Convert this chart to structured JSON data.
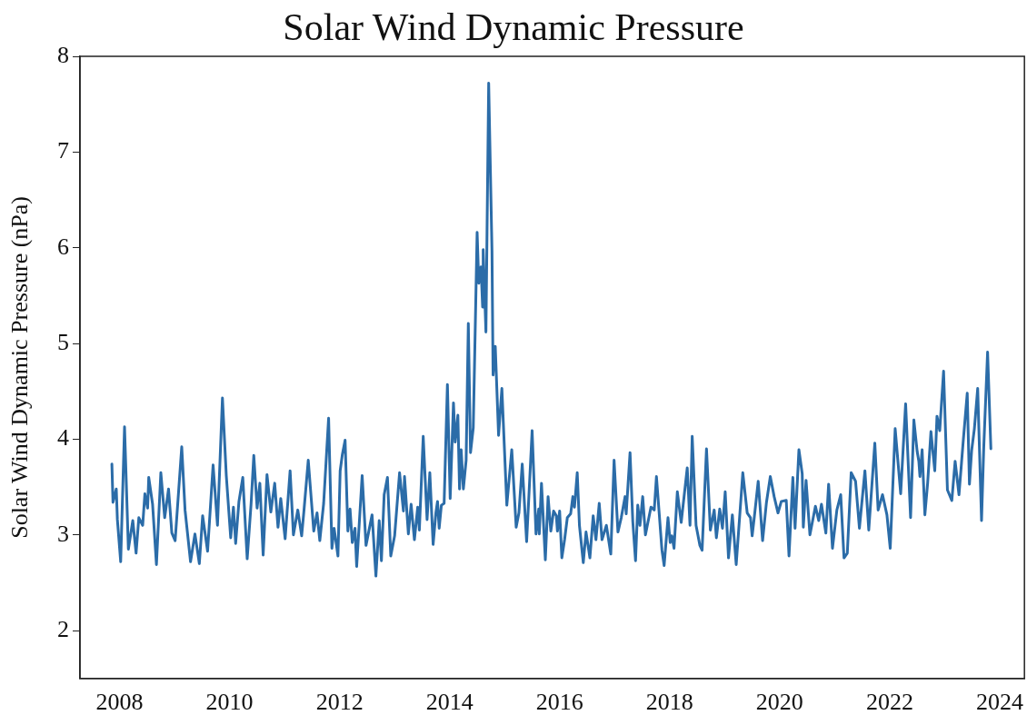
{
  "chart_data": {
    "type": "line",
    "title": "Solar Wind Dynamic Pressure",
    "ylabel": "Solar Wind Dynamic Pressure (nPa)",
    "xlim": [
      2007.28,
      2024.45
    ],
    "xticks": [
      2008,
      2010,
      2012,
      2014,
      2016,
      2018,
      2020,
      2022,
      2024
    ],
    "ylim": [
      1.5,
      8
    ],
    "yticks": [
      2,
      3,
      4,
      5,
      6,
      7,
      8
    ],
    "grid": false,
    "legend": false,
    "marker": "none",
    "line_style": "solid",
    "series": [
      {
        "color": "#2b6ca8",
        "x": [
          2007.86,
          2007.88,
          2007.94,
          2007.96,
          2008.02,
          2008.09,
          2008.16,
          2008.24,
          2008.3,
          2008.35,
          2008.42,
          2008.46,
          2008.51,
          2008.53,
          2008.6,
          2008.67,
          2008.75,
          2008.82,
          2008.89,
          2008.95,
          2009.01,
          2009.13,
          2009.19,
          2009.29,
          2009.37,
          2009.45,
          2009.51,
          2009.6,
          2009.7,
          2009.78,
          2009.87,
          2009.94,
          2010.02,
          2010.07,
          2010.11,
          2010.17,
          2010.24,
          2010.32,
          2010.39,
          2010.44,
          2010.5,
          2010.55,
          2010.61,
          2010.68,
          2010.75,
          2010.82,
          2010.88,
          2010.93,
          2011.01,
          2011.1,
          2011.16,
          2011.24,
          2011.31,
          2011.35,
          2011.43,
          2011.53,
          2011.59,
          2011.64,
          2011.71,
          2011.8,
          2011.86,
          2011.9,
          2011.97,
          2012.01,
          2012.05,
          2012.1,
          2012.15,
          2012.19,
          2012.23,
          2012.28,
          2012.31,
          2012.41,
          2012.48,
          2012.59,
          2012.66,
          2012.72,
          2012.76,
          2012.81,
          2012.87,
          2012.93,
          2013.0,
          2013.09,
          2013.16,
          2013.18,
          2013.25,
          2013.3,
          2013.36,
          2013.42,
          2013.45,
          2013.52,
          2013.59,
          2013.64,
          2013.7,
          2013.75,
          2013.78,
          2013.81,
          2013.85,
          2013.9,
          2013.96,
          2014.01,
          2014.07,
          2014.1,
          2014.15,
          2014.18,
          2014.21,
          2014.25,
          2014.3,
          2014.34,
          2014.38,
          2014.43,
          2014.5,
          2014.53,
          2014.57,
          2014.6,
          2014.61,
          2014.66,
          2014.71,
          2014.77,
          2014.79,
          2014.83,
          2014.89,
          2014.95,
          2015.04,
          2015.13,
          2015.21,
          2015.26,
          2015.32,
          2015.4,
          2015.5,
          2015.57,
          2015.62,
          2015.63,
          2015.67,
          2015.74,
          2015.79,
          2015.84,
          2015.89,
          2015.94,
          2015.96,
          2016.0,
          2016.04,
          2016.09,
          2016.14,
          2016.2,
          2016.24,
          2016.27,
          2016.32,
          2016.36,
          2016.43,
          2016.48,
          2016.55,
          2016.61,
          2016.66,
          2016.72,
          2016.77,
          2016.85,
          2016.93,
          2016.99,
          2017.06,
          2017.12,
          2017.19,
          2017.21,
          2017.28,
          2017.33,
          2017.38,
          2017.42,
          2017.46,
          2017.51,
          2017.56,
          2017.66,
          2017.72,
          2017.76,
          2017.86,
          2017.9,
          2017.97,
          2018.01,
          2018.04,
          2018.08,
          2018.14,
          2018.21,
          2018.32,
          2018.37,
          2018.41,
          2018.48,
          2018.55,
          2018.59,
          2018.67,
          2018.74,
          2018.81,
          2018.85,
          2018.91,
          2018.96,
          2019.01,
          2019.07,
          2019.14,
          2019.21,
          2019.33,
          2019.41,
          2019.47,
          2019.5,
          2019.54,
          2019.61,
          2019.69,
          2019.76,
          2019.83,
          2019.9,
          2019.97,
          2020.03,
          2020.12,
          2020.17,
          2020.24,
          2020.28,
          2020.35,
          2020.41,
          2020.43,
          2020.48,
          2020.55,
          2020.65,
          2020.71,
          2020.76,
          2020.84,
          2020.89,
          2020.96,
          2021.04,
          2021.11,
          2021.17,
          2021.23,
          2021.3,
          2021.38,
          2021.45,
          2021.55,
          2021.62,
          2021.73,
          2021.79,
          2021.87,
          2021.95,
          2022.01,
          2022.1,
          2022.2,
          2022.29,
          2022.38,
          2022.44,
          2022.5,
          2022.53,
          2022.55,
          2022.59,
          2022.64,
          2022.69,
          2022.75,
          2022.82,
          2022.86,
          2022.91,
          2022.98,
          2023.05,
          2023.13,
          2023.19,
          2023.26,
          2023.34,
          2023.41,
          2023.45,
          2023.49,
          2023.54,
          2023.6,
          2023.67,
          2023.71,
          2023.78,
          2023.84
        ],
        "values": [
          3.74,
          3.34,
          3.48,
          3.16,
          2.72,
          4.13,
          2.85,
          3.15,
          2.81,
          3.18,
          3.1,
          3.43,
          3.28,
          3.6,
          3.32,
          2.69,
          3.65,
          3.18,
          3.48,
          3.02,
          2.94,
          3.92,
          3.26,
          2.72,
          3.01,
          2.7,
          3.2,
          2.83,
          3.73,
          3.1,
          4.43,
          3.62,
          2.97,
          3.29,
          2.91,
          3.35,
          3.6,
          2.75,
          3.32,
          3.83,
          3.28,
          3.54,
          2.79,
          3.63,
          3.24,
          3.54,
          3.08,
          3.38,
          2.96,
          3.67,
          3.0,
          3.26,
          2.99,
          3.24,
          3.78,
          3.04,
          3.23,
          2.94,
          3.33,
          4.22,
          2.86,
          3.07,
          2.78,
          3.67,
          3.84,
          3.99,
          3.04,
          3.27,
          2.92,
          3.07,
          2.67,
          3.62,
          2.89,
          3.21,
          2.57,
          3.15,
          2.73,
          3.42,
          3.6,
          2.78,
          2.99,
          3.65,
          3.25,
          3.61,
          3.01,
          3.32,
          2.95,
          3.29,
          3.05,
          4.03,
          3.16,
          3.65,
          2.9,
          3.23,
          3.35,
          3.07,
          3.31,
          3.33,
          4.57,
          3.38,
          4.38,
          3.97,
          4.25,
          3.48,
          3.89,
          3.48,
          3.78,
          5.21,
          3.86,
          4.12,
          6.16,
          5.63,
          5.8,
          5.38,
          5.98,
          5.12,
          7.72,
          5.97,
          4.67,
          4.97,
          4.04,
          4.53,
          3.31,
          3.89,
          3.08,
          3.23,
          3.74,
          2.93,
          4.09,
          3.01,
          3.27,
          3.01,
          3.54,
          2.74,
          3.4,
          3.04,
          3.25,
          3.2,
          3.04,
          3.25,
          2.76,
          2.95,
          3.18,
          3.22,
          3.4,
          3.29,
          3.65,
          3.1,
          2.71,
          3.03,
          2.76,
          3.2,
          2.95,
          3.33,
          2.95,
          3.1,
          2.8,
          3.78,
          3.03,
          3.18,
          3.4,
          3.22,
          3.86,
          3.14,
          2.73,
          3.31,
          3.1,
          3.4,
          3.0,
          3.29,
          3.26,
          3.61,
          2.84,
          2.68,
          3.18,
          2.92,
          2.99,
          2.86,
          3.45,
          3.13,
          3.7,
          3.1,
          4.03,
          3.1,
          2.89,
          2.84,
          3.9,
          3.05,
          3.26,
          2.97,
          3.27,
          3.07,
          3.45,
          2.76,
          3.21,
          2.69,
          3.65,
          3.23,
          3.18,
          2.99,
          3.19,
          3.56,
          2.94,
          3.34,
          3.61,
          3.4,
          3.23,
          3.35,
          3.36,
          2.78,
          3.6,
          3.07,
          3.89,
          3.64,
          3.08,
          3.57,
          3.0,
          3.3,
          3.15,
          3.32,
          3.02,
          3.53,
          2.86,
          3.26,
          3.42,
          2.76,
          2.81,
          3.65,
          3.56,
          3.07,
          3.67,
          3.05,
          3.96,
          3.26,
          3.42,
          3.21,
          2.86,
          4.11,
          3.43,
          4.37,
          3.18,
          4.2,
          3.87,
          3.77,
          3.61,
          3.89,
          3.21,
          3.54,
          4.08,
          3.67,
          4.24,
          4.09,
          4.71,
          3.47,
          3.36,
          3.77,
          3.42,
          4.0,
          4.48,
          3.53,
          3.88,
          4.11,
          4.53,
          3.15,
          3.91,
          4.91,
          3.9
        ]
      }
    ]
  }
}
